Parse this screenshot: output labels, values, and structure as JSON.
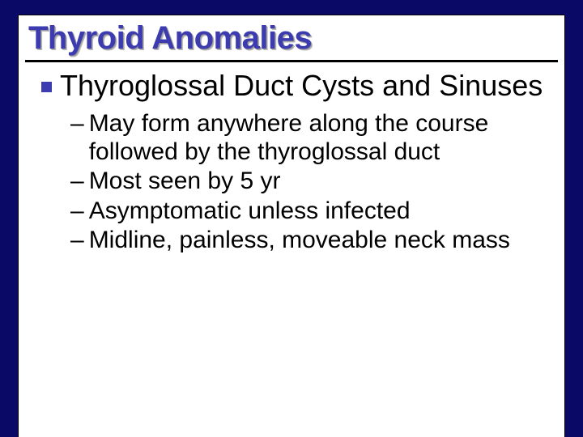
{
  "slide": {
    "title": "Thyroid Anomalies",
    "title_color": "#3c3cb0",
    "title_fontsize": 40,
    "background_color": "#0a0a66",
    "content_bg": "#ffffff",
    "underline_color": "#000000",
    "bullet_color": "#3c3cb0",
    "body_fontsize_l1": 36,
    "body_fontsize_l2": 30,
    "level1": {
      "text": "Thyroglossal Duct Cysts and Sinuses"
    },
    "level2": [
      {
        "text": "May form anywhere along the course followed by the thyroglossal duct"
      },
      {
        "text": "Most seen by 5 yr"
      },
      {
        "text": "Asymptomatic unless infected"
      },
      {
        "text": "Midline, painless, moveable neck mass"
      }
    ],
    "dash_char": "–"
  }
}
